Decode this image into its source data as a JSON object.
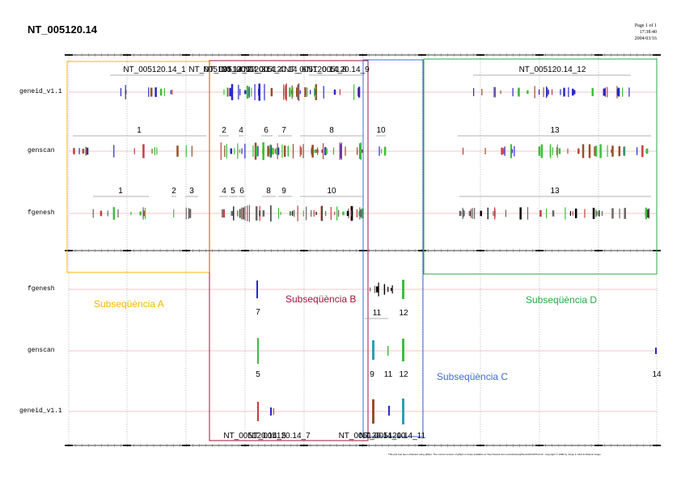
{
  "document": {
    "title": "NT_005120.14",
    "page_info": [
      "Page 1 of 1",
      "17:38:40",
      "2004/03/16"
    ],
    "footer": "This plot has been obtained using gff2ps. The current version of gff2ps is freely available at \"http://www1.imim.es/software/gfftools/GFF2PS.html\". Copyright © 1999 by Josep F. Abril & Roderic Guigo"
  },
  "colors": {
    "track_line": "#f0b4b4",
    "grid": "#aaaaaa",
    "subseq_A": "#f5b800",
    "subseq_B": "#a0143c",
    "subseq_C": "#3c6ed2",
    "subseq_D": "#28aa46",
    "frame_B_inner": "#c85000",
    "feature_blue": "#2828c8",
    "feature_red": "#c83c3c",
    "feature_green": "#3cbe3c",
    "feature_brown": "#965028",
    "feature_black": "#000000",
    "feature_gray": "#666666",
    "feature_teal": "#28a0b4"
  },
  "upper_panel": {
    "tracks": [
      {
        "label": "geneid_v1.1",
        "groups": [
          {
            "label": "NT_005120.14_1"
          },
          {
            "label": "NT_005120.14_2"
          },
          {
            "label": "NT_005120.14_3"
          },
          {
            "label": "NT_005120.14_4"
          },
          {
            "label": "NT_005120.14_6"
          },
          {
            "label": "NT_005120.14_8"
          },
          {
            "label": "NT_005120.14_9"
          },
          {
            "label": "NT_005120.14_12"
          }
        ]
      },
      {
        "label": "genscan",
        "groups": [
          {
            "label": "1"
          },
          {
            "label": "2"
          },
          {
            "label": "4"
          },
          {
            "label": "6"
          },
          {
            "label": "7"
          },
          {
            "label": "8"
          },
          {
            "label": "10"
          },
          {
            "label": "13"
          }
        ]
      },
      {
        "label": "fgenesh",
        "groups": [
          {
            "label": "1"
          },
          {
            "label": "2"
          },
          {
            "label": "3"
          },
          {
            "label": "4"
          },
          {
            "label": "5"
          },
          {
            "label": "6"
          },
          {
            "label": "8"
          },
          {
            "label": "9"
          },
          {
            "label": "10"
          },
          {
            "label": "13"
          }
        ]
      }
    ]
  },
  "lower_panel": {
    "tracks": [
      {
        "label": "fgenesh",
        "groups": [
          {
            "label": "7"
          },
          {
            "label": "11"
          },
          {
            "label": "12"
          }
        ]
      },
      {
        "label": "genscan",
        "groups": [
          {
            "label": "5"
          },
          {
            "label": "9"
          },
          {
            "label": "11"
          },
          {
            "label": "12"
          },
          {
            "label": "14"
          }
        ]
      },
      {
        "label": "geneid_v1.1",
        "groups": [
          {
            "label": "NT_005120.14_5"
          },
          {
            "label": "NT_005120.14_7"
          },
          {
            "label": "NT_005120.14_10"
          },
          {
            "label": "NT_005120.14_11"
          }
        ]
      }
    ]
  },
  "subsequences": [
    {
      "key": "A",
      "label": "Subseqüència A"
    },
    {
      "key": "B",
      "label": "Subseqüència B"
    },
    {
      "key": "C",
      "label": "Subseqüència C"
    },
    {
      "key": "D",
      "label": "Subseqüència D"
    }
  ]
}
